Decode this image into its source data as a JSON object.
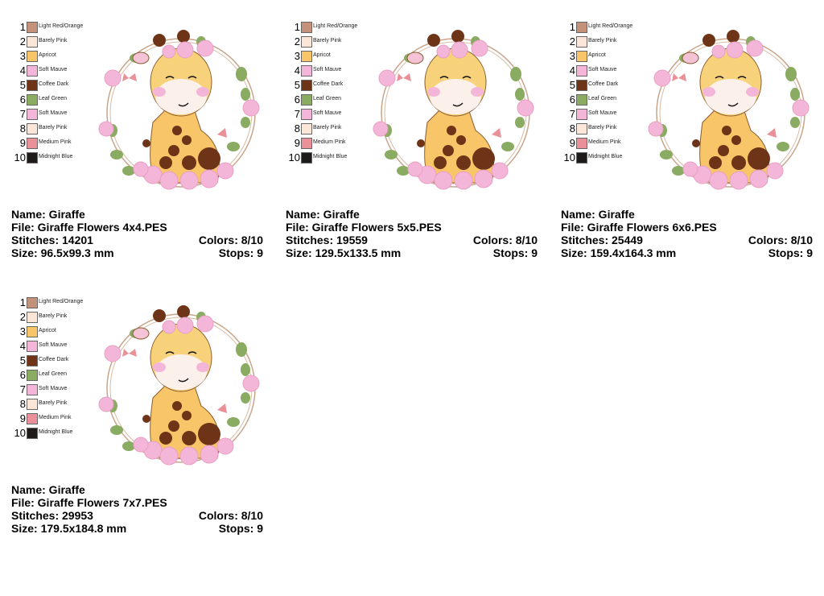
{
  "palette": [
    {
      "num": "1",
      "name": "Light Red/Orange",
      "color": "#c4927a"
    },
    {
      "num": "2",
      "name": "Barely Pink",
      "color": "#fbe6d8"
    },
    {
      "num": "3",
      "name": "Apricot",
      "color": "#f8c668"
    },
    {
      "num": "4",
      "name": "Soft Mauve",
      "color": "#f4b6d8"
    },
    {
      "num": "5",
      "name": "Coffee Dark",
      "color": "#6e3417"
    },
    {
      "num": "6",
      "name": "Leaf Green",
      "color": "#8aab62"
    },
    {
      "num": "7",
      "name": "Soft Mauve",
      "color": "#f4b6d8"
    },
    {
      "num": "8",
      "name": "Barely Pink",
      "color": "#fbe6d8"
    },
    {
      "num": "9",
      "name": "Medium Pink",
      "color": "#e99098"
    },
    {
      "num": "10",
      "name": "Midnight Blue",
      "color": "#1e1a1a"
    }
  ],
  "designs": [
    {
      "name": "Name: Giraffe",
      "file": "File: Giraffe Flowers 4x4.PES",
      "stitches": "Stitches: 14201",
      "colors": "Colors: 8/10",
      "size": "Size: 96.5x99.3 mm",
      "stops": "Stops: 9"
    },
    {
      "name": "Name: Giraffe",
      "file": "File: Giraffe Flowers 5x5.PES",
      "stitches": "Stitches: 19559",
      "colors": "Colors: 8/10",
      "size": "Size: 129.5x133.5 mm",
      "stops": "Stops: 9"
    },
    {
      "name": "Name: Giraffe",
      "file": "File: Giraffe Flowers 6x6.PES",
      "stitches": "Stitches: 25449",
      "colors": "Colors: 8/10",
      "size": "Size: 159.4x164.3 mm",
      "stops": "Stops: 9"
    },
    {
      "name": "Name: Giraffe",
      "file": "File: Giraffe Flowers 7x7.PES",
      "stitches": "Stitches: 29953",
      "colors": "Colors: 8/10",
      "size": "Size: 179.5x184.8 mm",
      "stops": "Stops: 9"
    }
  ]
}
